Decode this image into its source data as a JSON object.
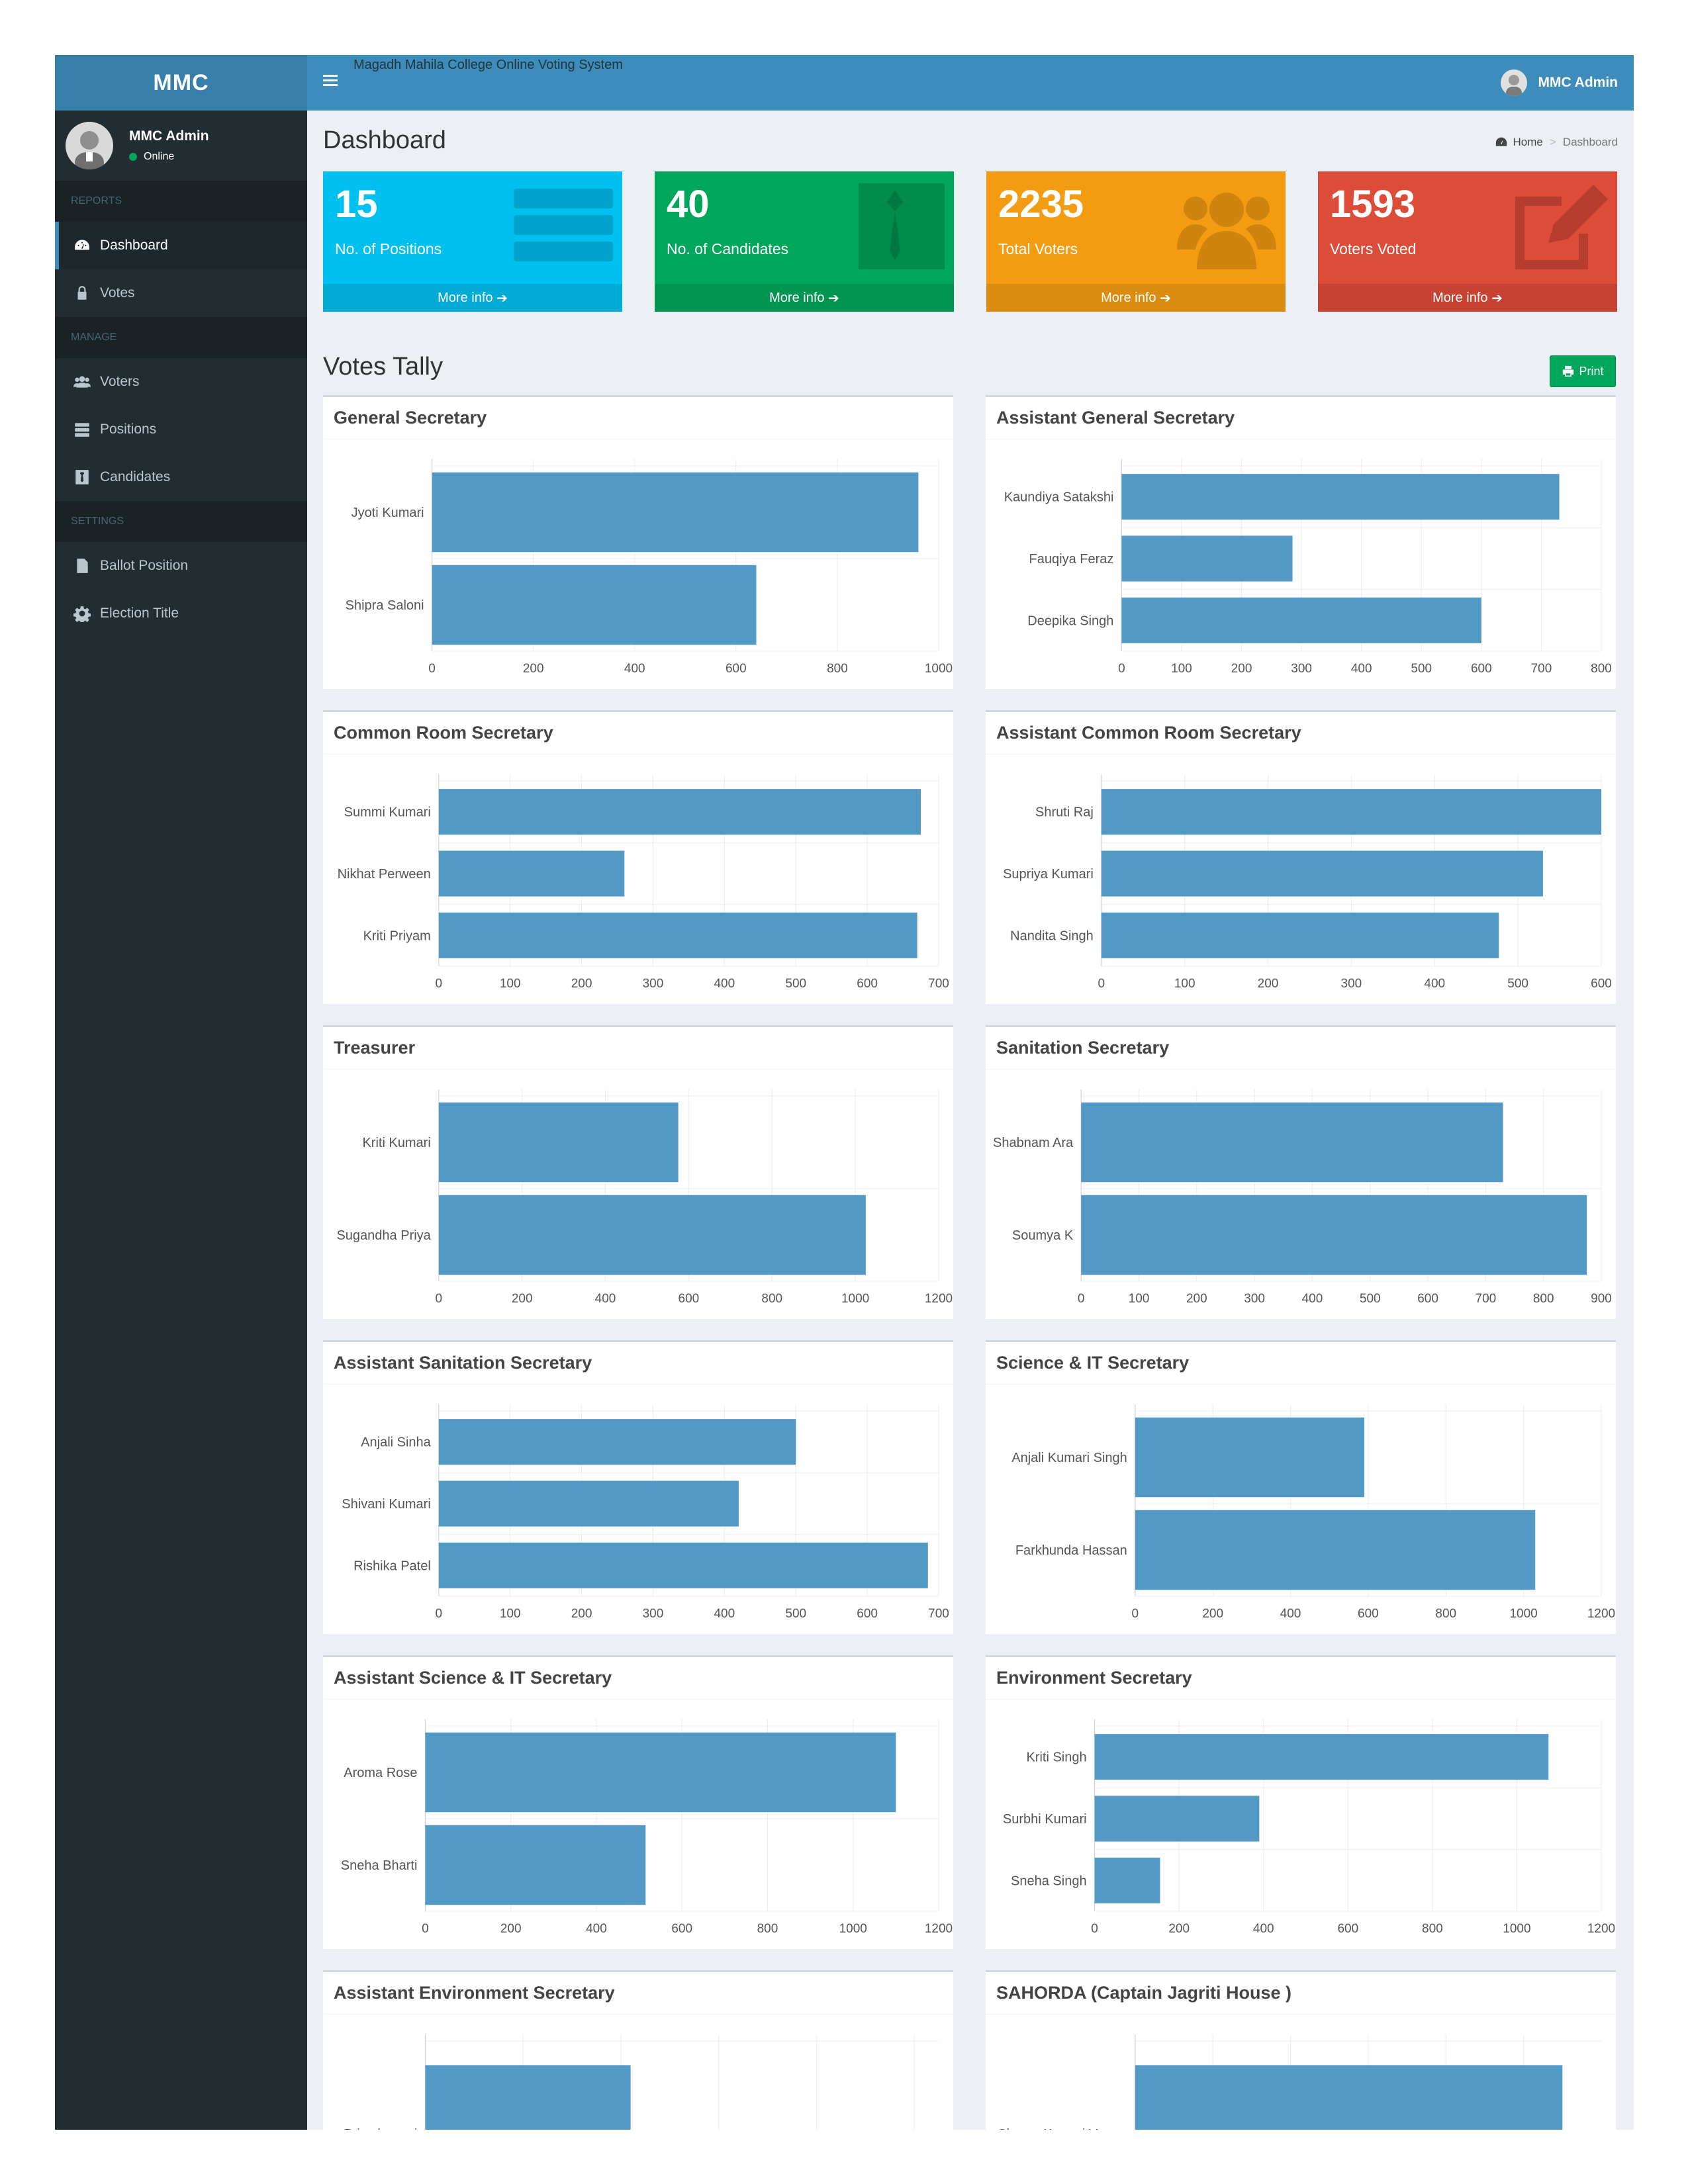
{
  "sidebar": {
    "logo": "MMC",
    "user": {
      "name": "MMC Admin",
      "status": "Online"
    },
    "sections": [
      {
        "header": "REPORTS",
        "items": [
          {
            "label": "Dashboard",
            "icon": "dashboard-icon",
            "active": true
          },
          {
            "label": "Votes",
            "icon": "lock-icon"
          }
        ]
      },
      {
        "header": "MANAGE",
        "items": [
          {
            "label": "Voters",
            "icon": "users-icon"
          },
          {
            "label": "Positions",
            "icon": "tasks-icon"
          },
          {
            "label": "Candidates",
            "icon": "black-tie-icon"
          }
        ]
      },
      {
        "header": "SETTINGS",
        "items": [
          {
            "label": "Ballot Position",
            "icon": "file-text-icon"
          },
          {
            "label": "Election Title",
            "icon": "cog-icon"
          }
        ]
      }
    ]
  },
  "topbar": {
    "system_title": "Magadh Mahila College Online Voting System",
    "admin_name": "MMC Admin"
  },
  "page": {
    "title": "Dashboard",
    "breadcrumb": [
      "Home",
      "Dashboard"
    ]
  },
  "stats": [
    {
      "value": "15",
      "label": "No. of Positions",
      "more": "More info",
      "color": "#00c0ef",
      "icon": "tasks-icon"
    },
    {
      "value": "40",
      "label": "No. of Candidates",
      "more": "More info",
      "color": "#00a65a",
      "icon": "black-tie-icon"
    },
    {
      "value": "2235",
      "label": "Total Voters",
      "more": "More info",
      "color": "#f39c12",
      "icon": "users-icon"
    },
    {
      "value": "1593",
      "label": "Voters Voted",
      "more": "More info",
      "color": "#dd4b39",
      "icon": "edit-icon"
    }
  ],
  "tally": {
    "title": "Votes Tally",
    "print_label": "Print"
  },
  "bar_color": "#5399c6",
  "chart_data": [
    {
      "type": "bar",
      "orientation": "horizontal",
      "title": "General Secretary",
      "categories": [
        "Jyoti Kumari",
        "Shipra Saloni"
      ],
      "values": [
        960,
        640
      ],
      "xlim": [
        0,
        1000
      ],
      "ticks": [
        0,
        200,
        400,
        600,
        800,
        1000
      ],
      "grid": true
    },
    {
      "type": "bar",
      "orientation": "horizontal",
      "title": "Assistant General Secretary",
      "categories": [
        "Kaundiya Satakshi",
        "Fauqiya Feraz",
        "Deepika Singh"
      ],
      "values": [
        730,
        285,
        600
      ],
      "xlim": [
        0,
        800
      ],
      "ticks": [
        0,
        100,
        200,
        300,
        400,
        500,
        600,
        700,
        800
      ],
      "grid": true
    },
    {
      "type": "bar",
      "orientation": "horizontal",
      "title": "Common Room Secretary",
      "categories": [
        "Summi Kumari",
        "Nikhat Perween",
        "Kriti Priyam"
      ],
      "values": [
        675,
        260,
        670
      ],
      "xlim": [
        0,
        700
      ],
      "ticks": [
        0,
        100,
        200,
        300,
        400,
        500,
        600,
        700
      ],
      "grid": true
    },
    {
      "type": "bar",
      "orientation": "horizontal",
      "title": "Assistant Common Room Secretary",
      "categories": [
        "Shruti Raj",
        "Supriya Kumari",
        "Nandita Singh"
      ],
      "values": [
        600,
        530,
        477
      ],
      "xlim": [
        0,
        600
      ],
      "ticks": [
        0,
        100,
        200,
        300,
        400,
        500,
        600
      ],
      "grid": true
    },
    {
      "type": "bar",
      "orientation": "horizontal",
      "title": "Treasurer",
      "categories": [
        "Kriti Kumari",
        "Sugandha Priya"
      ],
      "values": [
        575,
        1025
      ],
      "xlim": [
        0,
        1200
      ],
      "ticks": [
        0,
        200,
        400,
        600,
        800,
        1000,
        1200
      ],
      "grid": true
    },
    {
      "type": "bar",
      "orientation": "horizontal",
      "title": "Sanitation Secretary",
      "categories": [
        "Shabnam Ara",
        "Soumya K"
      ],
      "values": [
        730,
        875
      ],
      "xlim": [
        0,
        900
      ],
      "ticks": [
        0,
        100,
        200,
        300,
        400,
        500,
        600,
        700,
        800,
        900
      ],
      "grid": true
    },
    {
      "type": "bar",
      "orientation": "horizontal",
      "title": "Assistant Sanitation Secretary",
      "categories": [
        "Anjali Sinha",
        "Shivani Kumari",
        "Rishika Patel"
      ],
      "values": [
        500,
        420,
        685
      ],
      "xlim": [
        0,
        700
      ],
      "ticks": [
        0,
        100,
        200,
        300,
        400,
        500,
        600,
        700
      ],
      "grid": true
    },
    {
      "type": "bar",
      "orientation": "horizontal",
      "title": "Science & IT Secretary",
      "categories": [
        "Anjali Kumari Singh",
        "Farkhunda Hassan"
      ],
      "values": [
        590,
        1030
      ],
      "xlim": [
        0,
        1200
      ],
      "ticks": [
        0,
        200,
        400,
        600,
        800,
        1000,
        1200
      ],
      "grid": true
    },
    {
      "type": "bar",
      "orientation": "horizontal",
      "title": "Assistant Science & IT Secretary",
      "categories": [
        "Aroma Rose",
        "Sneha Bharti"
      ],
      "values": [
        1100,
        515
      ],
      "xlim": [
        0,
        1200
      ],
      "ticks": [
        0,
        200,
        400,
        600,
        800,
        1000,
        1200
      ],
      "grid": true
    },
    {
      "type": "bar",
      "orientation": "horizontal",
      "title": "Environment Secretary",
      "categories": [
        "Kriti Singh",
        "Surbhi Kumari",
        "Sneha Singh"
      ],
      "values": [
        1075,
        390,
        155
      ],
      "xlim": [
        0,
        1200
      ],
      "ticks": [
        0,
        200,
        400,
        600,
        800,
        1000,
        1200
      ],
      "grid": true
    },
    {
      "type": "bar",
      "orientation": "horizontal",
      "title": "Assistant Environment Secretary",
      "categories": [
        "Priya kumari"
      ],
      "values": [
        420
      ],
      "xlim": [
        0,
        1050
      ],
      "ticks": [],
      "grid": true
    },
    {
      "type": "bar",
      "orientation": "horizontal",
      "title": "SAHORDA (Captain Jagriti House )",
      "categories": [
        "Shreya Kumari Verma"
      ],
      "values": [
        1100
      ],
      "xlim": [
        0,
        1200
      ],
      "ticks": [],
      "grid": true
    }
  ]
}
